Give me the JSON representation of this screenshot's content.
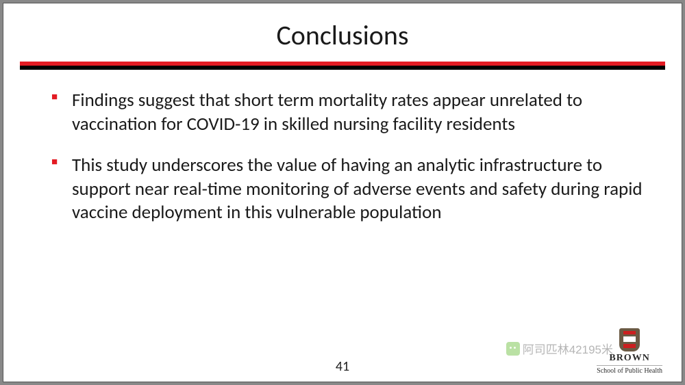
{
  "title": "Conclusions",
  "bullets": [
    "Findings suggest that short term mortality rates appear unrelated to vaccination for COVID-19 in skilled nursing facility residents",
    "This study underscores the value of having an analytic infrastructure to support near real-time monitoring of adverse events and safety during rapid vaccine deployment in this vulnerable population"
  ],
  "page_number": "41",
  "logo": {
    "name": "BROWN",
    "school": "School of Public Health"
  },
  "watermark_text": "阿司匹林42195米",
  "colors": {
    "accent_red": "#e31b23",
    "black": "#000000",
    "text": "#1a1a1a",
    "background": "#ffffff"
  },
  "typography": {
    "title_fontsize_pt": 40,
    "body_fontsize_pt": 27,
    "font_family": "Calibri"
  }
}
